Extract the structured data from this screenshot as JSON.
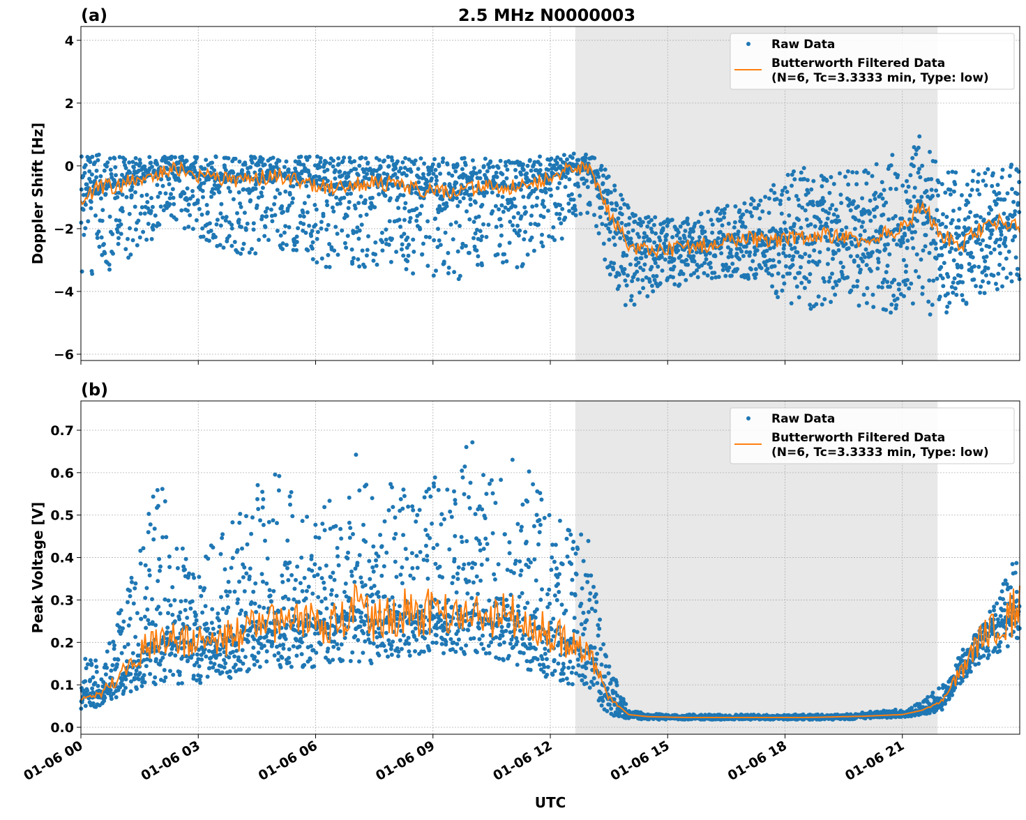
{
  "chart_data": [
    {
      "type": "scatter",
      "panel_label": "(a)",
      "title": "2.5 MHz N0000003",
      "xlabel": "",
      "ylabel": "Doppler Shift [Hz]",
      "xlim_hours": [
        0,
        24
      ],
      "ylim": [
        -6.2,
        4.44
      ],
      "yticks": [
        4,
        2,
        0,
        -2,
        -4,
        -6
      ],
      "ytick_labels": [
        "4",
        "2",
        "0",
        "−2",
        "−4",
        "−6"
      ],
      "grid": true,
      "shaded_span_hours": [
        12.64,
        21.9
      ],
      "legend": {
        "placement": "top-right",
        "entries": [
          "Raw Data",
          "Butterworth Filtered Data",
          "(N=6, Tc=3.3333 min, Type: low)"
        ]
      },
      "x_hours": [
        0,
        0.5,
        1,
        1.5,
        2,
        2.5,
        3,
        3.5,
        4,
        4.5,
        5,
        5.5,
        6,
        6.5,
        7,
        7.5,
        8,
        8.5,
        9,
        9.5,
        10,
        10.5,
        11,
        11.5,
        12,
        12.5,
        13,
        13.5,
        14,
        14.5,
        15,
        15.5,
        16,
        16.5,
        17,
        17.5,
        18,
        18.5,
        19,
        19.5,
        20,
        20.5,
        21,
        21.5,
        22,
        22.5,
        23,
        23.5,
        24
      ],
      "series": [
        {
          "name": "Butterworth Filtered Data",
          "color": "#ff7f0e",
          "values": [
            -1.0,
            -0.7,
            -0.6,
            -0.4,
            -0.2,
            -0.1,
            -0.3,
            -0.4,
            -0.5,
            -0.4,
            -0.3,
            -0.5,
            -0.6,
            -0.7,
            -0.6,
            -0.5,
            -0.6,
            -0.7,
            -0.8,
            -0.9,
            -0.7,
            -0.6,
            -0.7,
            -0.5,
            -0.4,
            -0.1,
            -0.1,
            -1.5,
            -2.5,
            -2.7,
            -2.7,
            -2.6,
            -2.5,
            -2.4,
            -2.3,
            -2.4,
            -2.3,
            -2.3,
            -2.2,
            -2.3,
            -2.4,
            -2.2,
            -2.0,
            -1.2,
            -2.2,
            -2.5,
            -2.0,
            -1.8,
            -2.0
          ]
        },
        {
          "name": "Raw Data",
          "color": "#1f77b4",
          "low": [
            -3.6,
            -3.4,
            -3.2,
            -2.6,
            -2.2,
            -2.0,
            -2.4,
            -2.6,
            -2.8,
            -2.8,
            -2.6,
            -2.8,
            -3.2,
            -3.4,
            -3.4,
            -3.3,
            -3.4,
            -3.5,
            -3.6,
            -3.7,
            -3.4,
            -3.2,
            -3.4,
            -3.1,
            -2.8,
            -2.0,
            -1.6,
            -3.6,
            -4.6,
            -4.2,
            -3.9,
            -3.8,
            -3.7,
            -3.6,
            -3.6,
            -3.9,
            -4.4,
            -4.6,
            -4.5,
            -4.3,
            -4.5,
            -4.6,
            -4.8,
            -4.9,
            -4.8,
            -4.6,
            -4.1,
            -3.9,
            -3.8
          ],
          "high": [
            0.3,
            0.4,
            0.3,
            0.3,
            0.3,
            0.3,
            0.3,
            0.3,
            0.3,
            0.3,
            0.3,
            0.3,
            0.3,
            0.3,
            0.3,
            0.3,
            0.3,
            0.3,
            0.3,
            0.2,
            0.3,
            0.2,
            0.2,
            0.3,
            0.3,
            0.4,
            0.4,
            0.0,
            -1.3,
            -1.6,
            -1.7,
            -1.6,
            -1.4,
            -1.2,
            -1.0,
            -0.9,
            -0.1,
            0.0,
            -0.2,
            -0.1,
            -0.1,
            0.2,
            0.6,
            1.0,
            0.3,
            0.2,
            0.2,
            0.1,
            0.0
          ]
        }
      ]
    },
    {
      "type": "scatter",
      "panel_label": "(b)",
      "xlabel": "UTC",
      "ylabel": "Peak Voltage [V]",
      "xlim_hours": [
        0,
        24
      ],
      "ylim": [
        -0.0164,
        0.769
      ],
      "yticks": [
        0.0,
        0.1,
        0.2,
        0.3,
        0.4,
        0.5,
        0.6,
        0.7
      ],
      "ytick_labels": [
        "0.0",
        "0.1",
        "0.2",
        "0.3",
        "0.4",
        "0.5",
        "0.6",
        "0.7"
      ],
      "xticks_hours": [
        0,
        3,
        6,
        9,
        12,
        15,
        18,
        21
      ],
      "xtick_labels": [
        "01-06 00",
        "01-06 03",
        "01-06 06",
        "01-06 09",
        "01-06 12",
        "01-06 15",
        "01-06 18",
        "01-06 21"
      ],
      "grid": true,
      "shaded_span_hours": [
        12.64,
        21.9
      ],
      "legend": {
        "placement": "top-right",
        "entries": [
          "Raw Data",
          "Butterworth Filtered Data",
          "(N=6, Tc=3.3333 min, Type: low)"
        ]
      },
      "x_hours": [
        0,
        0.5,
        1,
        1.5,
        2,
        2.5,
        3,
        3.5,
        4,
        4.5,
        5,
        5.5,
        6,
        6.5,
        7,
        7.5,
        8,
        8.5,
        9,
        9.5,
        10,
        10.5,
        11,
        11.5,
        12,
        12.5,
        13,
        13.5,
        14,
        14.5,
        15,
        15.5,
        16,
        16.5,
        17,
        17.5,
        18,
        18.5,
        19,
        19.5,
        20,
        20.5,
        21,
        21.5,
        22,
        22.5,
        23,
        23.5,
        24
      ],
      "series": [
        {
          "name": "Butterworth Filtered Data",
          "color": "#ff7f0e",
          "values": [
            0.07,
            0.08,
            0.12,
            0.17,
            0.22,
            0.2,
            0.2,
            0.2,
            0.22,
            0.24,
            0.25,
            0.25,
            0.24,
            0.25,
            0.28,
            0.25,
            0.27,
            0.27,
            0.27,
            0.26,
            0.27,
            0.25,
            0.27,
            0.25,
            0.22,
            0.2,
            0.18,
            0.07,
            0.03,
            0.025,
            0.024,
            0.023,
            0.023,
            0.023,
            0.023,
            0.023,
            0.023,
            0.023,
            0.024,
            0.025,
            0.026,
            0.028,
            0.03,
            0.04,
            0.06,
            0.13,
            0.2,
            0.25,
            0.28
          ]
        },
        {
          "name": "Raw Data",
          "color": "#1f77b4",
          "low": [
            0.04,
            0.05,
            0.07,
            0.09,
            0.1,
            0.1,
            0.1,
            0.11,
            0.12,
            0.13,
            0.14,
            0.14,
            0.14,
            0.15,
            0.15,
            0.15,
            0.16,
            0.17,
            0.17,
            0.17,
            0.17,
            0.16,
            0.15,
            0.13,
            0.11,
            0.09,
            0.08,
            0.03,
            0.02,
            0.018,
            0.018,
            0.018,
            0.018,
            0.018,
            0.018,
            0.018,
            0.018,
            0.018,
            0.018,
            0.018,
            0.02,
            0.022,
            0.024,
            0.028,
            0.04,
            0.1,
            0.15,
            0.18,
            0.2
          ],
          "high": [
            0.18,
            0.16,
            0.28,
            0.42,
            0.6,
            0.5,
            0.4,
            0.45,
            0.5,
            0.6,
            0.6,
            0.55,
            0.5,
            0.55,
            0.65,
            0.58,
            0.58,
            0.55,
            0.6,
            0.58,
            0.7,
            0.6,
            0.66,
            0.6,
            0.55,
            0.5,
            0.45,
            0.15,
            0.04,
            0.032,
            0.03,
            0.03,
            0.03,
            0.03,
            0.03,
            0.03,
            0.03,
            0.03,
            0.03,
            0.03,
            0.035,
            0.04,
            0.045,
            0.06,
            0.1,
            0.18,
            0.25,
            0.32,
            0.45
          ]
        }
      ]
    }
  ]
}
